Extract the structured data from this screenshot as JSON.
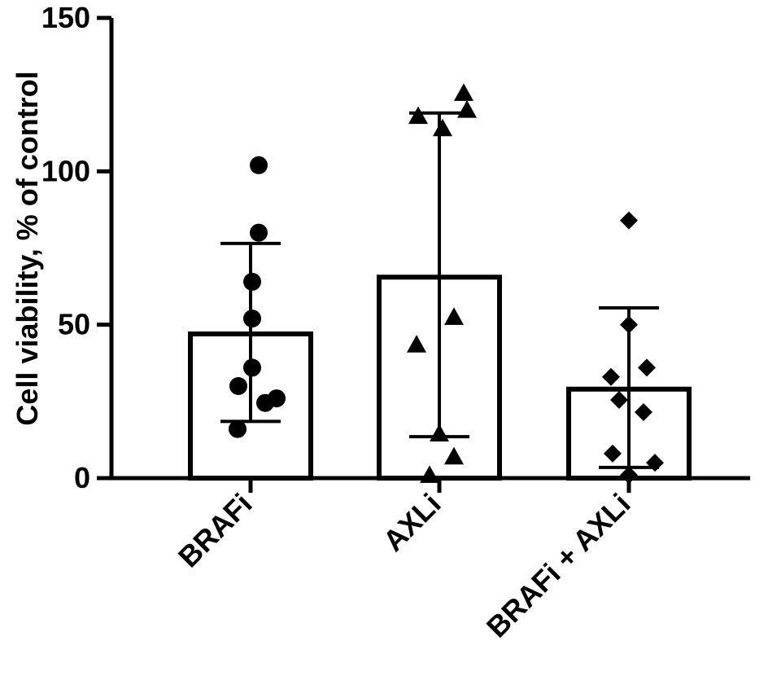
{
  "chart_data": {
    "type": "bar",
    "title": "",
    "xlabel": "",
    "ylabel": "Cell viability, % of control",
    "ylim": [
      0,
      150
    ],
    "yticks": [
      "0",
      "50",
      "100",
      "150"
    ],
    "categories": [
      "BRAFi",
      "AXLi",
      "BRAFi + AXLi"
    ],
    "means": [
      47,
      65.5,
      29
    ],
    "error_bars": [
      {
        "low": 18.5,
        "high": 76.5
      },
      {
        "low": 13.5,
        "high": 119
      },
      {
        "low": 3.5,
        "high": 55.5
      }
    ],
    "marker_shapes": [
      "circle",
      "triangle",
      "diamond"
    ],
    "points": [
      [
        102,
        80,
        64,
        52,
        36,
        30,
        26,
        24.5,
        16
      ],
      [
        125.5,
        120,
        118,
        114,
        52.5,
        43.5,
        14.5,
        7,
        1
      ],
      [
        84,
        50,
        36,
        33,
        25.5,
        21.5,
        8,
        5,
        1
      ]
    ],
    "grid": false,
    "legend": "none"
  }
}
